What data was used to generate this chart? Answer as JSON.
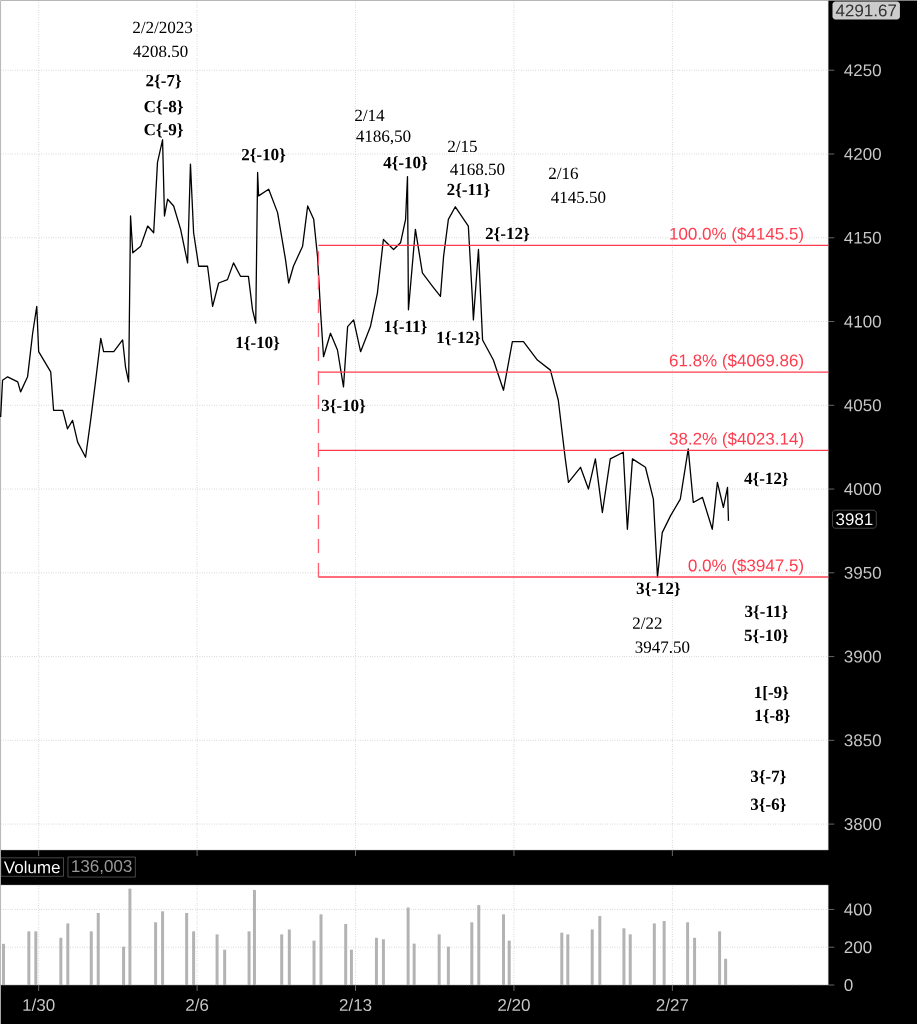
{
  "chart_data": [
    {
      "type": "line",
      "color": "#000000",
      "x": [
        "2023-01-28T07:41",
        "2023-01-28T09:42",
        "2023-01-28T15:04",
        "2023-01-29T01:49",
        "2023-01-29T04:51",
        "2023-01-29T12:14",
        "2023-01-29T17:37",
        "2023-01-29T21:59",
        "2023-01-30T00:00",
        "2023-01-30T12:46",
        "2023-01-30T15:48",
        "2023-01-31T01:32",
        "2023-01-31T06:35",
        "2023-01-31T11:57",
        "2023-01-31T17:20",
        "2023-02-01T01:44",
        "2023-02-01T07:06",
        "2023-02-01T12:29",
        "2023-02-01T17:51",
        "2023-02-01T20:53",
        "2023-02-02T07:38",
        "2023-02-02T17:02",
        "2023-02-02T20:04",
        "2023-02-02T23:25",
        "2023-02-03T01:26",
        "2023-02-03T03:48",
        "2023-02-03T12:12",
        "2023-02-03T19:35",
        "2023-02-04T01:58",
        "2023-02-04T06:00",
        "2023-02-04T11:23",
        "2023-02-04T13:24",
        "2023-02-04T16:45",
        "2023-02-04T23:08",
        "2023-02-05T06:32",
        "2023-02-05T13:55",
        "2023-02-05T16:57",
        "2023-02-05T20:18",
        "2023-02-06T01:41",
        "2023-02-06T11:05",
        "2023-02-06T16:28",
        "2023-02-06T22:51",
        "2023-02-07T08:15",
        "2023-02-07T14:38",
        "2023-02-07T22:02",
        "2023-02-08T06:26",
        "2023-02-08T10:48",
        "2023-02-08T14:10",
        "2023-02-08T16:11",
        "2023-02-08T17:11",
        "2023-02-09T03:56",
        "2023-02-09T13:21",
        "2023-02-09T21:45",
        "2023-02-10T01:06",
        "2023-02-10T06:09",
        "2023-02-10T15:53",
        "2023-02-10T21:16",
        "2023-02-11T03:39",
        "2023-02-11T07:41",
        "2023-02-11T11:02",
        "2023-02-11T14:04",
        "2023-02-11T21:27",
        "2023-02-12T04:51",
        "2023-02-12T11:14",
        "2023-02-12T15:36",
        "2023-02-12T21:59",
        "2023-02-13T05:23",
        "2023-02-13T15:48",
        "2023-02-13T23:11",
        "2023-02-14T05:34",
        "2023-02-14T16:19",
        "2023-02-14T23:43",
        "2023-02-15T05:05",
        "2023-02-15T07:06",
        "2023-02-15T08:07",
        "2023-02-15T15:30",
        "2023-02-15T22:54",
        "2023-02-16T09:39",
        "2023-02-16T18:03",
        "2023-02-16T21:24",
        "2023-02-17T02:27",
        "2023-02-17T09:50",
        "2023-02-17T23:37",
        "2023-02-18T03:59",
        "2023-02-18T04:59",
        "2023-02-18T10:22",
        "2023-02-18T14:44",
        "2023-02-19T02:10",
        "2023-02-19T12:55",
        "2023-02-19T22:19",
        "2023-02-20T10:05",
        "2023-02-21T00:52",
        "2023-02-21T14:38",
        "2023-02-21T23:02",
        "2023-02-22T06:26",
        "2023-02-22T09:48",
        "2023-02-22T22:34",
        "2023-02-23T06:58",
        "2023-02-23T14:21",
        "2023-02-23T21:45",
        "2023-02-24T06:09",
        "2023-02-24T19:55",
        "2023-02-25T00:17",
        "2023-02-25T05:40",
        "2023-02-25T19:26",
        "2023-02-26T03:50",
        "2023-02-26T08:12",
        "2023-02-26T13:15",
        "2023-02-26T21:59",
        "2023-02-27T08:24",
        "2023-02-27T16:48",
        "2023-02-27T22:10",
        "2023-02-28T07:55",
        "2023-02-28T18:20",
        "2023-02-28T23:43",
        "2023-03-01T06:06",
        "2023-03-01T10:28",
        "2023-03-01T11:28"
      ],
      "values": [
        4043,
        4065,
        4067,
        4064,
        4058,
        4067,
        4093,
        4109,
        4082,
        4070,
        4047,
        4047,
        4036,
        4041,
        4028,
        4019,
        4041,
        4065,
        4090,
        4082,
        4082,
        4089,
        4073,
        4064,
        4163,
        4141,
        4145,
        4157,
        4153,
        4195,
        4208.5,
        4163,
        4173,
        4169,
        4155,
        4135,
        4194,
        4153,
        4133,
        4133,
        4109,
        4123,
        4125,
        4135,
        4127,
        4127,
        4107,
        4099,
        4189,
        4175,
        4179,
        4165,
        4137,
        4123,
        4133,
        4145,
        4169,
        4161,
        4139,
        4105,
        4079,
        4093,
        4083,
        4061,
        4097,
        4101,
        4082,
        4097,
        4117,
        4149,
        4143,
        4147,
        4161,
        4186.5,
        4107,
        4155,
        4129,
        4121,
        4115,
        4139,
        4161,
        4168.5,
        4157,
        4113,
        4101,
        4143,
        4089,
        4077,
        4059,
        4088,
        4088,
        4077,
        4071,
        4053,
        4018,
        4004,
        4013,
        4000,
        4018,
        3986,
        4018,
        4022,
        3976,
        4018,
        4013,
        3994,
        3947.5,
        3974,
        3984,
        3994,
        4024,
        3992,
        3995,
        3976,
        4004,
        3989,
        4001,
        3981
      ],
      "xlim": [
        "2023-01-28T07:41",
        "2023-03-05T21:19"
      ],
      "xticks": [
        {
          "value": "2023-01-30",
          "label": null
        },
        {
          "value": "2023-02-06",
          "label": null
        },
        {
          "value": "2023-02-13",
          "label": null
        },
        {
          "value": "2023-02-20",
          "label": null
        },
        {
          "value": "2023-02-27",
          "label": null
        }
      ],
      "ylim": [
        3784.5,
        4291.67
      ],
      "yticks": [
        3800,
        3850,
        3900,
        3950,
        4000,
        4050,
        4100,
        4150,
        4200,
        4250
      ],
      "grid": true,
      "tick_labels": "y",
      "ref_lines": [
        {
          "axis": "y",
          "value": 4145.5,
          "label": "100.0% ($4145.5)",
          "color": "#ff3b4e"
        },
        {
          "axis": "y",
          "value": 4069.86,
          "label": "61.8% ($4069.86)",
          "color": "#ff3b4e"
        },
        {
          "axis": "y",
          "value": 4023.14,
          "label": "38.2% ($4023.14)",
          "color": "#ff3b4e"
        },
        {
          "axis": "y",
          "value": 3947.5,
          "label": "0.0% ($3947.5)",
          "color": "#ff3b4e"
        },
        {
          "axis": "x",
          "value": "2023-02-11T08:41",
          "color": "#ff6070",
          "line_style": "dashed"
        }
      ],
      "annotations": [
        "2/2/2023",
        "4208.50",
        "2/14",
        "4186,50",
        "2/15",
        "4168.50",
        "2/16",
        "4145.50",
        "2/22",
        "3947.50",
        "2{-7}",
        "C{-8}",
        "C{-9}",
        "2{-10}",
        "1{-10}",
        "4{-10}",
        "2{-11}",
        "2{-12}",
        "1{-11}",
        "1{-12}",
        "3{-10}",
        "3{-12}",
        "4{-12}",
        "3{-11}",
        "5{-10}",
        "1[-9}",
        "1{-8}",
        "3{-7}",
        "3{-6}",
        "4291.67",
        "3981"
      ]
    },
    {
      "type": "bar",
      "title": "Volume",
      "annotations": [
        "136,003"
      ],
      "color": "#b3b3b3",
      "x": [
        "2023-01-28T10:42",
        "2023-01-29T13:35",
        "2023-01-29T20:59",
        "2023-01-30T23:31",
        "2023-01-31T06:55",
        "2023-02-01T07:47",
        "2023-02-01T15:10",
        "2023-02-02T18:03",
        "2023-02-03T00:46",
        "2023-02-04T03:59",
        "2023-02-04T11:23",
        "2023-02-05T12:55",
        "2023-02-05T20:18",
        "2023-02-06T21:10",
        "2023-02-07T05:14",
        "2023-02-08T07:06",
        "2023-02-08T12:49",
        "2023-02-09T17:43",
        "2023-02-10T01:47",
        "2023-02-11T03:59",
        "2023-02-11T11:23",
        "2023-02-12T13:35",
        "2023-02-12T19:38",
        "2023-02-13T22:11",
        "2023-02-14T05:34",
        "2023-02-15T07:47",
        "2023-02-15T14:10",
        "2023-02-16T16:42",
        "2023-02-17T02:27",
        "2023-02-18T03:19",
        "2023-02-18T10:42",
        "2023-02-19T12:55",
        "2023-02-19T18:58",
        "2023-02-22T02:44",
        "2023-02-22T09:07",
        "2023-02-23T10:59",
        "2023-02-23T19:03",
        "2023-02-24T20:36",
        "2023-02-25T03:19",
        "2023-02-26T04:51",
        "2023-02-26T15:16",
        "2023-02-27T16:08",
        "2023-02-27T23:31",
        "2023-03-01T02:04",
        "2023-03-01T08:27"
      ],
      "values": [
        218,
        284,
        284,
        250,
        326,
        284,
        381,
        203,
        510,
        332,
        390,
        381,
        284,
        268,
        187,
        284,
        503,
        268,
        294,
        235,
        374,
        323,
        187,
        250,
        242,
        410,
        219,
        268,
        203,
        332,
        423,
        374,
        235,
        277,
        268,
        294,
        365,
        300,
        268,
        326,
        339,
        332,
        250,
        284,
        139
      ],
      "xlim": [
        "2023-01-28T07:41",
        "2023-03-05T21:19"
      ],
      "xticks": [
        {
          "value": "2023-01-30",
          "label": "1/30"
        },
        {
          "value": "2023-02-06",
          "label": "2/6"
        },
        {
          "value": "2023-02-13",
          "label": "2/13"
        },
        {
          "value": "2023-02-20",
          "label": "2/20"
        },
        {
          "value": "2023-02-27",
          "label": "2/27"
        }
      ],
      "ylim": [
        0,
        529
      ],
      "yticks": [
        0,
        200,
        400
      ],
      "grid": true
    }
  ]
}
